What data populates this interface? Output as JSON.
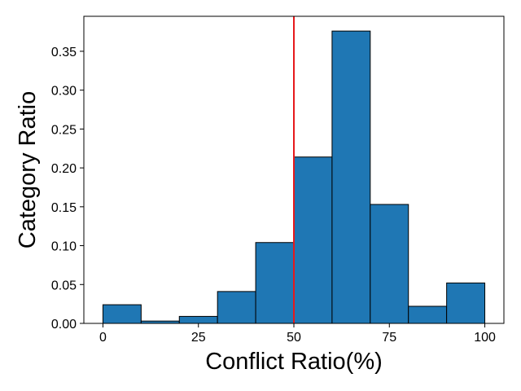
{
  "chart_data": {
    "type": "bar",
    "subtype": "histogram",
    "title": "",
    "xlabel": "Conflict Ratio(%)",
    "ylabel": "Category Ratio",
    "bin_edges": [
      0,
      10,
      20,
      30,
      40,
      50,
      60,
      70,
      80,
      90,
      100
    ],
    "values": [
      0.024,
      0.003,
      0.009,
      0.041,
      0.104,
      0.214,
      0.376,
      0.153,
      0.022,
      0.052
    ],
    "xlim": [
      -5,
      105
    ],
    "ylim": [
      0,
      0.395
    ],
    "x_ticks": [
      0,
      25,
      50,
      75,
      100
    ],
    "x_tick_labels": [
      "0",
      "25",
      "50",
      "75",
      "100"
    ],
    "y_ticks": [
      0,
      0.05,
      0.1,
      0.15,
      0.2,
      0.25,
      0.3,
      0.35
    ],
    "y_tick_labels": [
      "0.00",
      "0.05",
      "0.10",
      "0.15",
      "0.20",
      "0.25",
      "0.30",
      "0.35"
    ],
    "reference_line": {
      "orientation": "vertical",
      "x": 50,
      "color": "#e6191c"
    },
    "bar_color": "#1f77b4",
    "bar_edge_color": "#000000",
    "grid": false,
    "legend": "none"
  }
}
